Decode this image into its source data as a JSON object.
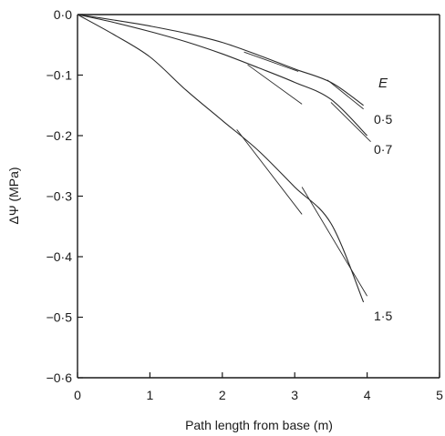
{
  "chart_data": {
    "type": "line",
    "title": "",
    "xlabel": "Path length from base (m)",
    "ylabel": "ΔΨ (MPa)",
    "xlim": [
      0,
      5
    ],
    "ylim": [
      -0.6,
      0
    ],
    "x_ticks": [
      "0",
      "1",
      "2",
      "3",
      "4",
      "5"
    ],
    "y_ticks": [
      "0·0",
      "−0·1",
      "−0·2",
      "−0·3",
      "−0·4",
      "−0·5",
      "−0·6"
    ],
    "legend_title": "E",
    "series": [
      {
        "name": "0·5",
        "x": [
          0,
          0.5,
          1.0,
          1.5,
          2.0,
          2.5,
          3.0,
          3.5,
          3.95
        ],
        "y": [
          0,
          -0.009,
          -0.019,
          -0.031,
          -0.046,
          -0.067,
          -0.09,
          -0.112,
          -0.15
        ],
        "segments": [
          [
            [
              2.3,
              -0.062
            ],
            [
              3.05,
              -0.094
            ]
          ],
          [
            [
              3.45,
              -0.108
            ],
            [
              3.95,
              -0.156
            ]
          ]
        ]
      },
      {
        "name": "0·7",
        "x": [
          0,
          0.5,
          1.0,
          1.5,
          2.0,
          2.5,
          3.0,
          3.5,
          4.0
        ],
        "y": [
          0,
          -0.013,
          -0.028,
          -0.045,
          -0.065,
          -0.088,
          -0.112,
          -0.14,
          -0.2
        ],
        "segments": [
          [
            [
              2.35,
              -0.083
            ],
            [
              3.1,
              -0.148
            ]
          ],
          [
            [
              3.5,
              -0.145
            ],
            [
              4.05,
              -0.21
            ]
          ]
        ]
      },
      {
        "name": "1·5",
        "x": [
          0,
          0.5,
          1.0,
          1.5,
          2.0,
          2.5,
          3.0,
          3.5,
          3.95
        ],
        "y": [
          0,
          -0.033,
          -0.07,
          -0.125,
          -0.175,
          -0.225,
          -0.285,
          -0.345,
          -0.475
        ],
        "segments": [
          [
            [
              2.2,
              -0.19
            ],
            [
              3.1,
              -0.33
            ]
          ],
          [
            [
              3.1,
              -0.285
            ],
            [
              4.0,
              -0.465
            ]
          ]
        ]
      }
    ]
  }
}
